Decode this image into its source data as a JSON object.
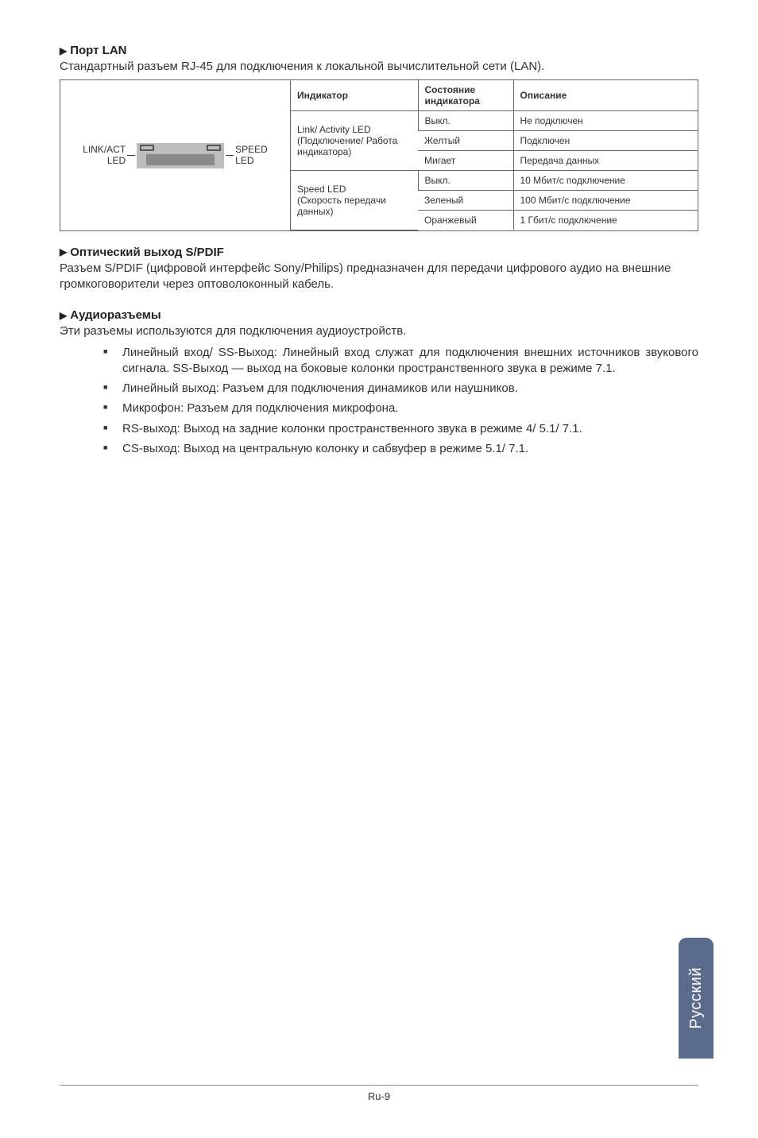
{
  "sections": {
    "lan": {
      "title": "Порт LAN",
      "body": "Стандартный разъем RJ-45 для подключения к локальной вычислительной сети (LAN).",
      "diagram": {
        "left_label_1": "LINK/ACT",
        "left_label_2": "LED",
        "right_label_1": "SPEED",
        "right_label_2": "LED"
      },
      "table": {
        "headers": {
          "indicator": "Индикатор",
          "state": "Состояние индикатора",
          "desc": "Описание"
        },
        "group1_title": "Link/ Activity LED",
        "group1_sub": "(Подключение/ Работа индикатора)",
        "group2_title": "Speed LED",
        "group2_sub": "(Скорость передачи данных)",
        "rows1": [
          {
            "state": "Выкл.",
            "desc": "Не подключен"
          },
          {
            "state": "Желтый",
            "desc": "Подключен"
          },
          {
            "state": "Мигает",
            "desc": "Передача данных"
          }
        ],
        "rows2": [
          {
            "state": "Выкл.",
            "desc": "10 Мбит/с подключение"
          },
          {
            "state": "Зеленый",
            "desc": "100 Мбит/с подключение"
          },
          {
            "state": "Оранжевый",
            "desc": "1 Гбит/с подключение"
          }
        ]
      }
    },
    "spdif": {
      "title": "Оптический выход S/PDIF",
      "body": "Разъем S/PDIF (цифровой интерфейс Sony/Philips) предназначен для передачи цифрового аудио на внешние громкоговорители через оптоволоконный кабель."
    },
    "audio": {
      "title": "Аудиоразъемы",
      "body": "Эти разъемы используются для подключения аудиоустройств.",
      "items": [
        "Линейный вход/ SS-Выход: Линейный вход служат для подключения внешних источников звукового сигнала. SS-Выход — выход на боковые колонки пространственного звука в режиме 7.1.",
        "Линейный выход: Разъем для подключения динамиков или наушников.",
        "Микрофон: Разъем для подключения микрофона.",
        "RS-выход: Выход на задние колонки пространственного звука в режиме 4/ 5.1/ 7.1.",
        "CS-выход: Выход на центральную колонку и сабвуфер в режиме 5.1/ 7.1."
      ]
    }
  },
  "side_tab": "Русский",
  "page_number": "Ru-9",
  "colors": {
    "tab_bg": "#5a6b8c",
    "tab_text": "#ffffff",
    "border": "#666666",
    "text": "#333333"
  }
}
